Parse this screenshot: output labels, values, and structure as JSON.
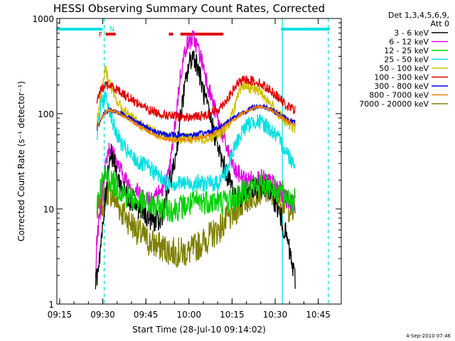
{
  "chart_data": {
    "type": "line",
    "title": "HESSI Observing Summary Count Rates, Corrected",
    "xlabel": "Start Time (28-Jul-10 09:14:02)",
    "ylabel": "Corrected Count Rate (s⁻¹ detector⁻¹)",
    "yscale": "log",
    "ylim": [
      1,
      1000
    ],
    "xlim": [
      "09:14:02",
      "10:53:00"
    ],
    "x_ticks": [
      "09:15",
      "09:30",
      "09:45",
      "10:00",
      "10:15",
      "10:30",
      "10:45"
    ],
    "y_ticks": [
      "1",
      "10",
      "100",
      "1000"
    ],
    "legend_header": [
      "Det 1,3,4,5,6,9,",
      "Att 0"
    ],
    "legend_position": "top-right, outside plot",
    "footer": "4-Sep-2010 07:46",
    "flags": [
      {
        "label": "F",
        "color": "#e00000",
        "segments": [
          [
            "09:31:00",
            "09:34:30"
          ],
          [
            "09:53:00",
            "09:54:30"
          ],
          [
            "09:57:00",
            "10:12:00"
          ]
        ]
      },
      {
        "label": "N",
        "color": "#00e0e0",
        "segments": [
          [
            "09:14:02",
            "09:30:00"
          ],
          [
            "10:32:00",
            "10:49:00"
          ]
        ]
      }
    ],
    "vertical_lines": [
      {
        "time": "09:30:30",
        "style": "dashed",
        "color": "#00e0e0"
      },
      {
        "time": "10:32:30",
        "style": "solid",
        "color": "#00e0e0"
      },
      {
        "time": "10:48:30",
        "style": "dashed",
        "color": "#00e0e0"
      }
    ],
    "series": [
      {
        "name": "3 - 6 keV",
        "color": "#000000",
        "noise": 0.12,
        "points": [
          [
            "09:27:30",
            1.5
          ],
          [
            "09:28:00",
            2
          ],
          [
            "09:29:00",
            3.5
          ],
          [
            "09:30:00",
            6
          ],
          [
            "09:31:00",
            14
          ],
          [
            "09:32:00",
            30
          ],
          [
            "09:33:00",
            40
          ],
          [
            "09:34:00",
            30
          ],
          [
            "09:35:00",
            22
          ],
          [
            "09:37:00",
            16
          ],
          [
            "09:40:00",
            12
          ],
          [
            "09:43:00",
            10
          ],
          [
            "09:46:00",
            8
          ],
          [
            "09:50:00",
            7
          ],
          [
            "09:55:00",
            30
          ],
          [
            "09:58:00",
            150
          ],
          [
            "10:00:00",
            330
          ],
          [
            "10:01:30",
            420
          ],
          [
            "10:03:00",
            320
          ],
          [
            "10:05:00",
            170
          ],
          [
            "10:07:00",
            100
          ],
          [
            "10:09:00",
            60
          ],
          [
            "10:11:00",
            35
          ],
          [
            "10:14:00",
            20
          ],
          [
            "10:17:00",
            13
          ],
          [
            "10:20:00",
            15
          ],
          [
            "10:25:00",
            17
          ],
          [
            "10:28:00",
            16
          ],
          [
            "10:30:00",
            12
          ],
          [
            "10:32:00",
            8
          ],
          [
            "10:34:00",
            5
          ],
          [
            "10:35:00",
            3.5
          ],
          [
            "10:36:00",
            2.5
          ],
          [
            "10:37:00",
            1.8
          ]
        ]
      },
      {
        "name": "6 - 12 keV",
        "color": "#e000e0",
        "noise": 0.1,
        "points": [
          [
            "09:27:30",
            2
          ],
          [
            "09:28:00",
            5
          ],
          [
            "09:29:30",
            12
          ],
          [
            "09:31:00",
            30
          ],
          [
            "09:32:00",
            45
          ],
          [
            "09:33:00",
            42
          ],
          [
            "09:35:00",
            30
          ],
          [
            "09:38:00",
            20
          ],
          [
            "09:41:00",
            16
          ],
          [
            "09:45:00",
            13
          ],
          [
            "09:50:00",
            15
          ],
          [
            "09:53:00",
            22
          ],
          [
            "09:55:00",
            70
          ],
          [
            "09:57:00",
            250
          ],
          [
            "09:59:00",
            520
          ],
          [
            "10:01:30",
            620
          ],
          [
            "10:03:00",
            500
          ],
          [
            "10:05:00",
            320
          ],
          [
            "10:07:00",
            180
          ],
          [
            "10:09:00",
            110
          ],
          [
            "10:11:00",
            70
          ],
          [
            "10:13:00",
            45
          ],
          [
            "10:16:00",
            25
          ],
          [
            "10:20:00",
            20
          ],
          [
            "10:25:00",
            21
          ],
          [
            "10:30:00",
            18
          ],
          [
            "10:33:00",
            14
          ],
          [
            "10:35:00",
            12
          ],
          [
            "10:37:00",
            11
          ]
        ]
      },
      {
        "name": "12 - 25 keV",
        "color": "#00d000",
        "noise": 0.14,
        "points": [
          [
            "09:28:00",
            12
          ],
          [
            "09:29:30",
            18
          ],
          [
            "09:31:00",
            22
          ],
          [
            "09:32:00",
            21
          ],
          [
            "09:35:00",
            17
          ],
          [
            "09:38:00",
            14
          ],
          [
            "09:42:00",
            12
          ],
          [
            "09:46:00",
            11
          ],
          [
            "09:50:00",
            10
          ],
          [
            "09:55:00",
            10
          ],
          [
            "10:00:00",
            11
          ],
          [
            "10:04:00",
            12
          ],
          [
            "10:08:00",
            12
          ],
          [
            "10:12:00",
            12
          ],
          [
            "10:16:00",
            13
          ],
          [
            "10:20:00",
            16
          ],
          [
            "10:24:00",
            18
          ],
          [
            "10:27:00",
            18
          ],
          [
            "10:30:00",
            16
          ],
          [
            "10:33:00",
            14
          ],
          [
            "10:35:00",
            13
          ],
          [
            "10:37:00",
            12
          ]
        ]
      },
      {
        "name": "25 - 50 keV",
        "color": "#00e0e0",
        "noise": 0.09,
        "points": [
          [
            "09:28:00",
            60
          ],
          [
            "09:29:30",
            130
          ],
          [
            "09:31:00",
            150
          ],
          [
            "09:32:30",
            110
          ],
          [
            "09:34:00",
            70
          ],
          [
            "09:37:00",
            45
          ],
          [
            "09:40:00",
            35
          ],
          [
            "09:43:00",
            30
          ],
          [
            "09:46:00",
            27
          ],
          [
            "09:49:00",
            23
          ],
          [
            "09:52:00",
            19
          ],
          [
            "09:55:00",
            18.5
          ],
          [
            "10:05:00",
            18.5
          ],
          [
            "10:10:00",
            18.5
          ],
          [
            "10:13:00",
            25
          ],
          [
            "10:16:00",
            45
          ],
          [
            "10:19:00",
            70
          ],
          [
            "10:23:00",
            85
          ],
          [
            "10:27:00",
            75
          ],
          [
            "10:30:00",
            60
          ],
          [
            "10:33:00",
            45
          ],
          [
            "10:35:00",
            35
          ],
          [
            "10:37:00",
            30
          ]
        ]
      },
      {
        "name": "50 - 100 keV",
        "color": "#d0c000",
        "noise": 0.06,
        "points": [
          [
            "09:28:00",
            80
          ],
          [
            "09:29:30",
            180
          ],
          [
            "09:31:00",
            300
          ],
          [
            "09:32:00",
            230
          ],
          [
            "09:34:00",
            150
          ],
          [
            "09:37:00",
            110
          ],
          [
            "09:41:00",
            85
          ],
          [
            "09:45:00",
            70
          ],
          [
            "09:50:00",
            60
          ],
          [
            "09:55:00",
            55
          ],
          [
            "10:05:00",
            55
          ],
          [
            "10:10:00",
            58
          ],
          [
            "10:14:00",
            80
          ],
          [
            "10:17:00",
            150
          ],
          [
            "10:19:00",
            200
          ],
          [
            "10:21:00",
            190
          ],
          [
            "10:25:00",
            170
          ],
          [
            "10:28:00",
            130
          ],
          [
            "10:31:00",
            100
          ],
          [
            "10:34:00",
            80
          ],
          [
            "10:37:00",
            70
          ]
        ]
      },
      {
        "name": "100 - 300 keV",
        "color": "#e00000",
        "noise": 0.05,
        "points": [
          [
            "09:28:00",
            140
          ],
          [
            "09:29:30",
            180
          ],
          [
            "09:31:00",
            200
          ],
          [
            "09:33:00",
            195
          ],
          [
            "09:35:00",
            180
          ],
          [
            "09:38:00",
            155
          ],
          [
            "09:42:00",
            130
          ],
          [
            "09:46:00",
            110
          ],
          [
            "09:50:00",
            100
          ],
          [
            "09:55:00",
            93
          ],
          [
            "10:00:00",
            92
          ],
          [
            "10:05:00",
            95
          ],
          [
            "10:10:00",
            110
          ],
          [
            "10:14:00",
            150
          ],
          [
            "10:17:00",
            210
          ],
          [
            "10:20:00",
            230
          ],
          [
            "10:24:00",
            215
          ],
          [
            "10:28:00",
            180
          ],
          [
            "10:31:00",
            150
          ],
          [
            "10:34:00",
            120
          ],
          [
            "10:37:00",
            110
          ]
        ]
      },
      {
        "name": "300 - 800 keV",
        "color": "#0000e0",
        "noise": 0.03,
        "points": [
          [
            "09:28:00",
            70
          ],
          [
            "09:30:00",
            95
          ],
          [
            "09:32:00",
            110
          ],
          [
            "09:35:00",
            105
          ],
          [
            "09:38:00",
            95
          ],
          [
            "09:41:00",
            85
          ],
          [
            "09:44:00",
            75
          ],
          [
            "09:47:00",
            68
          ],
          [
            "09:50:00",
            62
          ],
          [
            "09:52:00",
            60
          ],
          [
            "10:02:00",
            60
          ],
          [
            "10:06:00",
            63
          ],
          [
            "10:10:00",
            70
          ],
          [
            "10:14:00",
            85
          ],
          [
            "10:18:00",
            100
          ],
          [
            "10:22:00",
            115
          ],
          [
            "10:25:00",
            120
          ],
          [
            "10:28:00",
            115
          ],
          [
            "10:31:00",
            100
          ],
          [
            "10:34:00",
            88
          ],
          [
            "10:37:00",
            80
          ]
        ]
      },
      {
        "name": "800 - 7000 keV",
        "color": "#f08000",
        "noise": 0.02,
        "points": [
          [
            "09:28:00",
            70
          ],
          [
            "09:30:00",
            95
          ],
          [
            "09:32:00",
            110
          ],
          [
            "09:35:00",
            103
          ],
          [
            "09:38:00",
            92
          ],
          [
            "09:41:00",
            80
          ],
          [
            "09:44:00",
            70
          ],
          [
            "09:47:00",
            62
          ],
          [
            "09:50:00",
            56
          ],
          [
            "09:53:00",
            53
          ],
          [
            "10:00:00",
            53
          ],
          [
            "10:06:00",
            58
          ],
          [
            "10:10:00",
            65
          ],
          [
            "10:14:00",
            80
          ],
          [
            "10:18:00",
            98
          ],
          [
            "10:22:00",
            112
          ],
          [
            "10:25:00",
            118
          ],
          [
            "10:28:00",
            112
          ],
          [
            "10:31:00",
            98
          ],
          [
            "10:34:00",
            85
          ],
          [
            "10:37:00",
            78
          ]
        ]
      },
      {
        "name": "7000 - 20000 keV",
        "color": "#808000",
        "noise": 0.16,
        "points": [
          [
            "09:28:00",
            9
          ],
          [
            "09:30:00",
            12
          ],
          [
            "09:32:00",
            16
          ],
          [
            "09:34:00",
            13
          ],
          [
            "09:37:00",
            9
          ],
          [
            "09:40:00",
            7
          ],
          [
            "09:43:00",
            5.5
          ],
          [
            "09:46:00",
            4.5
          ],
          [
            "09:50:00",
            4
          ],
          [
            "09:55:00",
            3.5
          ],
          [
            "10:00:00",
            3.5
          ],
          [
            "10:05:00",
            4.5
          ],
          [
            "10:10:00",
            6
          ],
          [
            "10:14:00",
            8
          ],
          [
            "10:18:00",
            11
          ],
          [
            "10:22:00",
            14
          ],
          [
            "10:25:00",
            16
          ],
          [
            "10:28:00",
            15
          ],
          [
            "10:31:00",
            13
          ],
          [
            "10:34:00",
            11
          ],
          [
            "10:37:00",
            9
          ]
        ]
      }
    ]
  }
}
